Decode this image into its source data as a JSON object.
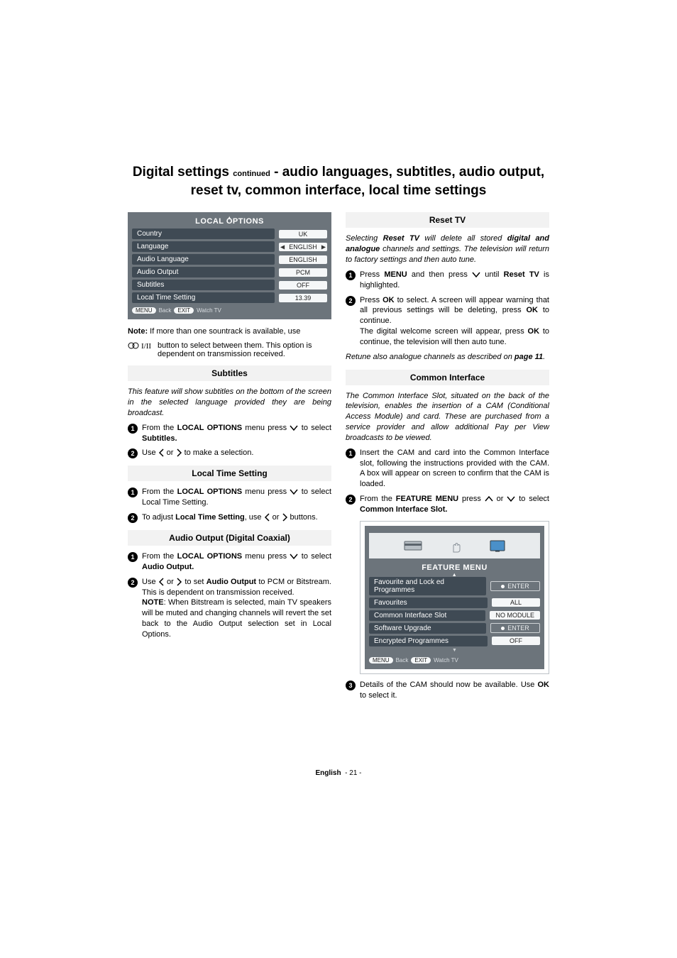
{
  "heading": {
    "lead": "Digital settings",
    "cont": "continued",
    "rest1": " - audio languages, subtitles, audio output, reset tv, common interface, local time settings"
  },
  "localOptionsTitle": "LOCAL OPTIONS",
  "localOptions": [
    {
      "label": "Country",
      "value": "UK",
      "arrows": false
    },
    {
      "label": "Language",
      "value": "ENGLISH",
      "arrows": true
    },
    {
      "label": "Audio Language",
      "value": "ENGLISH",
      "arrows": false
    },
    {
      "label": "Audio Output",
      "value": "PCM",
      "arrows": false
    },
    {
      "label": "Subtitles",
      "value": "OFF",
      "arrows": false
    },
    {
      "label": "Local Time Setting",
      "value": "13.39",
      "arrows": false
    }
  ],
  "menuFooterBtns": {
    "menu": "MENU",
    "back": "Back",
    "exit": "EXIT",
    "watch": "Watch TV"
  },
  "noteSoundtrack": {
    "prefix": "Note:",
    "text1": "If more than one sountrack is available, use",
    "text2": "button to select between them. This option is dependent on transmission received."
  },
  "subtitles": {
    "heading": "Subtitles",
    "intro": "This feature will show subtitles on the bottom of the screen in the selected language provided they are being broadcast.",
    "step1a": "From the ",
    "step1b": "LOCAL OPTIONS",
    "step1c": " menu press ",
    "step1e": " to select ",
    "step1f": "Subtitles.",
    "step2a": "Use ",
    "step2c": " or ",
    "step2e": " to make a selection."
  },
  "localTime": {
    "heading": "Local Time Setting",
    "step1a": "From the ",
    "step1b": "LOCAL OPTIONS",
    "step1c": " menu press ",
    "step1e": " to select Local Time Setting.",
    "step2a": "To adjust ",
    "step2b": "Local Time Setting",
    "step2c": ",  use ",
    "step2e": " or ",
    "step2g": " buttons."
  },
  "audioOutput": {
    "heading": "Audio Output (Digital Coaxial)",
    "step1a": "From the ",
    "step1b": "LOCAL OPTIONS",
    "step1c": " menu press ",
    "step1e": " to select ",
    "step1f": "Audio Output.",
    "step2a": "Use ",
    "step2c": " or ",
    "step2e": " to set ",
    "step2f": "Audio Output",
    "step2g": " to PCM or Bitstream. This is dependent on transmission received.",
    "noteLabel": "NOTE",
    "noteText": ": When Bitstream is selected, main TV speakers will be muted and changing channels will revert the set back to the Audio Output selection set in Local Options."
  },
  "resetTv": {
    "heading": "Reset TV",
    "introA": "Selecting ",
    "introB": "Reset TV",
    "introC": " will delete all stored ",
    "introD": "digital and analogue",
    "introE": " channels and settings. The television will return to factory settings and then auto tune.",
    "step1a": "Press ",
    "step1b": "MENU",
    "step1c": " and then press ",
    "step1e": " until ",
    "step1f": "Reset TV",
    "step1g": " is highlighted.",
    "step2a": "Press ",
    "step2b": "OK",
    "step2c": " to select. A screen will appear warning that all previous settings will be deleting, press ",
    "step2d": "OK",
    "step2e": " to continue.",
    "step2fA": "The digital welcome screen will appear, press ",
    "step2fB": "OK",
    "step2fC": " to continue, the television will then auto tune.",
    "retuneA": "Retune also analogue channels as described on ",
    "retuneB": "page 11",
    "retuneC": "."
  },
  "ci": {
    "heading": "Common Interface",
    "intro": "The Common Interface Slot, situated on the back of the television, enables the insertion of a CAM (Conditional Access Module) and card. These are purchased from a service provider and allow additional Pay per View broadcasts to be viewed.",
    "step1": "Insert the CAM and card into the Common Interface slot, following the instructions provided with the CAM. A box will appear on screen to confirm that the CAM is loaded.",
    "step2a": "From the ",
    "step2b": "FEATURE MENU",
    "step2c": " press ",
    "step2e": " or ",
    "step2g": " to select ",
    "step2h": "Common Interface Slot.",
    "featureMenuTitle": "FEATURE MENU",
    "featureRows": [
      {
        "label": "Favourite and Lock ed Programmes",
        "value": "ENTER",
        "dot": true,
        "outline": true
      },
      {
        "label": "Favourites",
        "value": "ALL",
        "outline": false
      },
      {
        "label": "Common Interface Slot",
        "value": "NO MODULE",
        "outline": false
      },
      {
        "label": "Software Upgrade",
        "value": "ENTER",
        "dot": true,
        "outline": true
      },
      {
        "label": "Encrypted Programmes",
        "value": "OFF",
        "outline": false
      }
    ],
    "step3a": "Details of the CAM should now be available. Use ",
    "step3b": "OK",
    "step3c": " to select it."
  },
  "footer": {
    "lang": "English",
    "page": "- 21 -"
  },
  "colors": {
    "panelBg": "#6c747b",
    "pillBg": "#3f4a54",
    "valueBg": "#f5f7f8",
    "sectionBg": "#f2f2f2"
  }
}
